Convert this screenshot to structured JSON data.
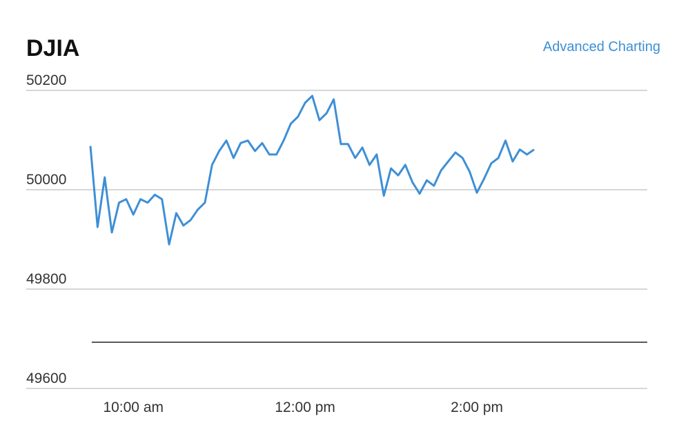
{
  "chart_data": {
    "type": "line",
    "title": "DJIA",
    "link": "Advanced Charting",
    "x": [
      "09:30",
      "09:35",
      "09:40",
      "09:45",
      "09:50",
      "09:55",
      "10:00",
      "10:05",
      "10:10",
      "10:15",
      "10:20",
      "10:25",
      "10:30",
      "10:35",
      "10:40",
      "10:45",
      "10:50",
      "10:55",
      "11:00",
      "11:05",
      "11:10",
      "11:15",
      "11:20",
      "11:25",
      "11:30",
      "11:35",
      "11:40",
      "11:45",
      "11:50",
      "11:55",
      "12:00",
      "12:05",
      "12:10",
      "12:15",
      "12:20",
      "12:25",
      "12:30",
      "12:35",
      "12:40",
      "12:45",
      "12:50",
      "12:55",
      "13:00",
      "13:05",
      "13:10",
      "13:15",
      "13:20",
      "13:25",
      "13:30",
      "13:35",
      "13:40",
      "13:45",
      "13:50",
      "13:55",
      "14:00",
      "14:05",
      "14:10",
      "14:15",
      "14:20",
      "14:25",
      "14:30",
      "14:35",
      "14:40"
    ],
    "series": [
      {
        "name": "DJIA",
        "color": "#3d8fd6",
        "values": [
          50088,
          49925,
          50025,
          49914,
          49974,
          49981,
          49950,
          49981,
          49974,
          49990,
          49981,
          49890,
          49953,
          49928,
          49939,
          49960,
          49974,
          50050,
          50078,
          50099,
          50064,
          50094,
          50099,
          50078,
          50094,
          50071,
          50071,
          50099,
          50133,
          50147,
          50175,
          50189,
          50140,
          50154,
          50182,
          50092,
          50092,
          50064,
          50085,
          50050,
          50071,
          49988,
          50043,
          50029,
          50050,
          50015,
          49992,
          50019,
          50008,
          50039,
          50057,
          50075,
          50064,
          50036,
          49994,
          50022,
          50053,
          50064,
          50099,
          50057,
          50081,
          50071,
          50081
        ]
      }
    ],
    "xlim": [
      "09:30",
      "16:00"
    ],
    "xticks": [
      {
        "value": "10:00",
        "label": "10:00 am"
      },
      {
        "value": "12:00",
        "label": "12:00 pm"
      },
      {
        "value": "14:00",
        "label": "2:00 pm"
      }
    ],
    "ylim": [
      49600,
      50200
    ],
    "yticks": [
      49600,
      49800,
      50000,
      50200
    ],
    "grid": true
  }
}
